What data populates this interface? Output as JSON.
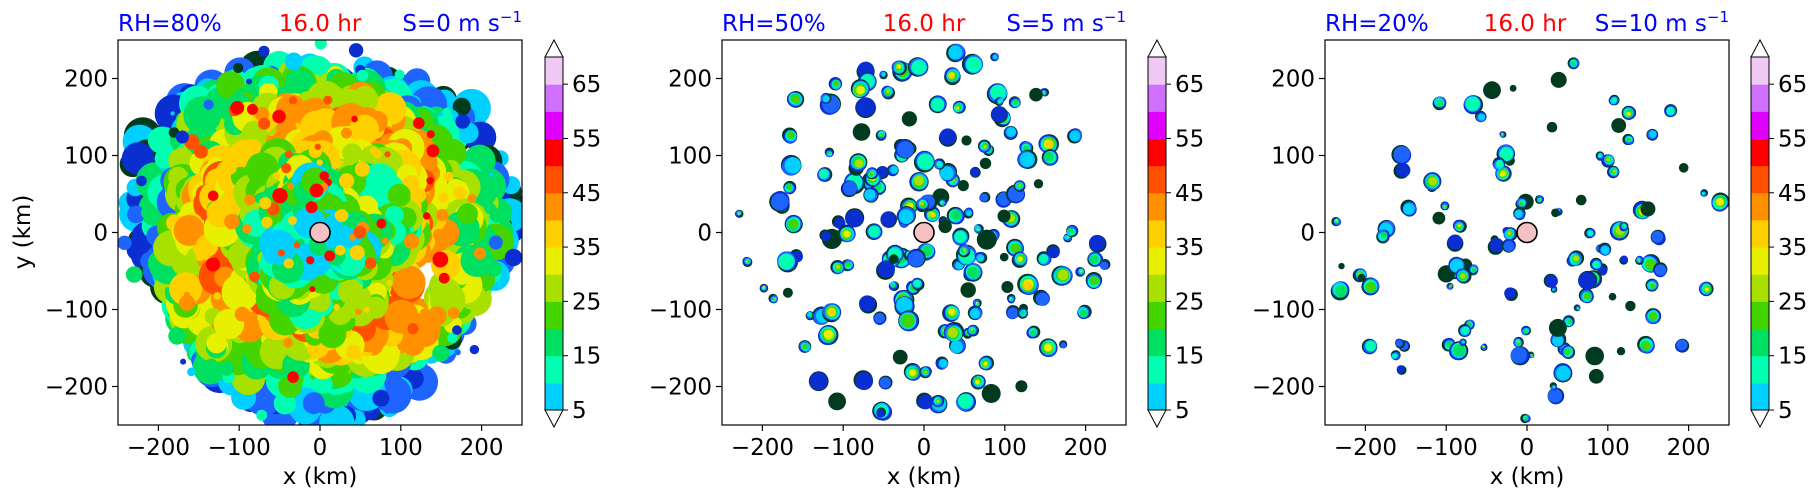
{
  "figure": {
    "colors": {
      "title_blue": "#0000ff",
      "title_red": "#ff0000",
      "center_marker": "#f4c2c2"
    }
  },
  "chart_data": [
    {
      "type": "contourf",
      "title_left": "RH=80%",
      "title_center": "16.0 hr",
      "title_right": "S=0 m s",
      "title_right_sup": "−1",
      "xlabel": "x (km)",
      "ylabel": "y (km)",
      "xlim": [
        -250,
        250
      ],
      "ylim": [
        -250,
        250
      ],
      "xticks": [
        "−200",
        "−100",
        "0",
        "100",
        "200"
      ],
      "yticks": [
        "−200",
        "−100",
        "0",
        "100",
        "200"
      ],
      "pattern": "dense",
      "center_marker": [
        0,
        0
      ],
      "colorbar_ticks": [
        "5",
        "15",
        "25",
        "35",
        "45",
        "55",
        "65"
      ]
    },
    {
      "type": "contourf",
      "title_left": "RH=50%",
      "title_center": "16.0 hr",
      "title_right": "S=5 m s",
      "title_right_sup": "−1",
      "xlabel": "x (km)",
      "ylabel": "",
      "xlim": [
        -250,
        250
      ],
      "ylim": [
        -250,
        250
      ],
      "xticks": [
        "−200",
        "−100",
        "0",
        "100",
        "200"
      ],
      "yticks": [
        "−200",
        "−100",
        "0",
        "100",
        "200"
      ],
      "pattern": "medium",
      "center_marker": [
        0,
        0
      ],
      "colorbar_ticks": [
        "5",
        "15",
        "25",
        "35",
        "45",
        "55",
        "65"
      ]
    },
    {
      "type": "contourf",
      "title_left": "RH=20%",
      "title_center": "16.0 hr",
      "title_right": "S=10 m s",
      "title_right_sup": "−1",
      "xlabel": "x (km)",
      "ylabel": "",
      "xlim": [
        -250,
        250
      ],
      "ylim": [
        -250,
        250
      ],
      "xticks": [
        "−200",
        "−100",
        "0",
        "100",
        "200"
      ],
      "yticks": [
        "−200",
        "−100",
        "0",
        "100",
        "200"
      ],
      "pattern": "sparse",
      "center_marker": [
        0,
        0
      ],
      "colorbar_ticks": [
        "5",
        "15",
        "25",
        "35",
        "45",
        "55",
        "65"
      ]
    }
  ],
  "colorbar": {
    "levels": [
      5,
      10,
      15,
      20,
      25,
      30,
      35,
      40,
      45,
      50,
      55,
      60,
      65,
      70
    ],
    "colors": [
      "#003a1f",
      "#0a2ecf",
      "#1e64ff",
      "#00d0ff",
      "#00ffb0",
      "#00e060",
      "#44d400",
      "#a8e000",
      "#e6f000",
      "#ffd000",
      "#ff9000",
      "#ff5000",
      "#ff0000",
      "#e000ff",
      "#d070ff",
      "#f0c8f4"
    ]
  }
}
